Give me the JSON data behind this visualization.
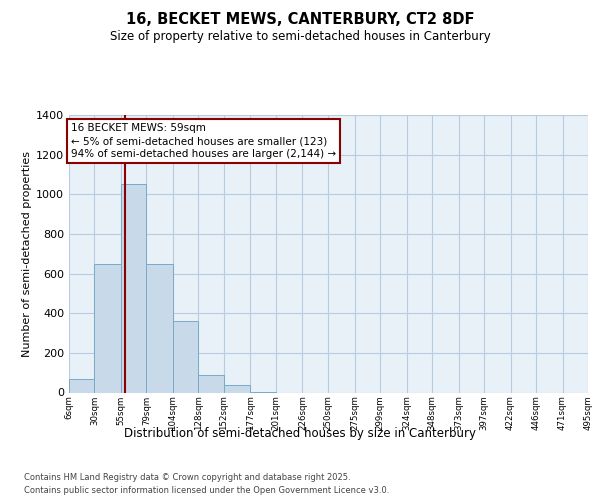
{
  "title1": "16, BECKET MEWS, CANTERBURY, CT2 8DF",
  "title2": "Size of property relative to semi-detached houses in Canterbury",
  "xlabel": "Distribution of semi-detached houses by size in Canterbury",
  "ylabel": "Number of semi-detached properties",
  "footer1": "Contains HM Land Registry data © Crown copyright and database right 2025.",
  "footer2": "Contains public sector information licensed under the Open Government Licence v3.0.",
  "annotation_title": "16 BECKET MEWS: 59sqm",
  "annotation_line2": "← 5% of semi-detached houses are smaller (123)",
  "annotation_line3": "94% of semi-detached houses are larger (2,144) →",
  "property_size": 59,
  "bin_edges": [
    6,
    30,
    55,
    79,
    104,
    128,
    152,
    177,
    201,
    226,
    250,
    275,
    299,
    324,
    348,
    373,
    397,
    422,
    446,
    471,
    495
  ],
  "bar_heights": [
    70,
    650,
    1050,
    650,
    360,
    90,
    40,
    5,
    0,
    0,
    0,
    0,
    0,
    0,
    0,
    0,
    0,
    0,
    0,
    0
  ],
  "bar_color": "#c8daea",
  "bar_edge_color": "#7aaac8",
  "vline_color": "#8b0000",
  "annotation_box_color": "#ffffff",
  "annotation_box_edge": "#8b0000",
  "plot_bg_color": "#e8f0f8",
  "grid_color": "#b8cce0",
  "ylim": [
    0,
    1400
  ],
  "yticks": [
    0,
    200,
    400,
    600,
    800,
    1000,
    1200,
    1400
  ]
}
